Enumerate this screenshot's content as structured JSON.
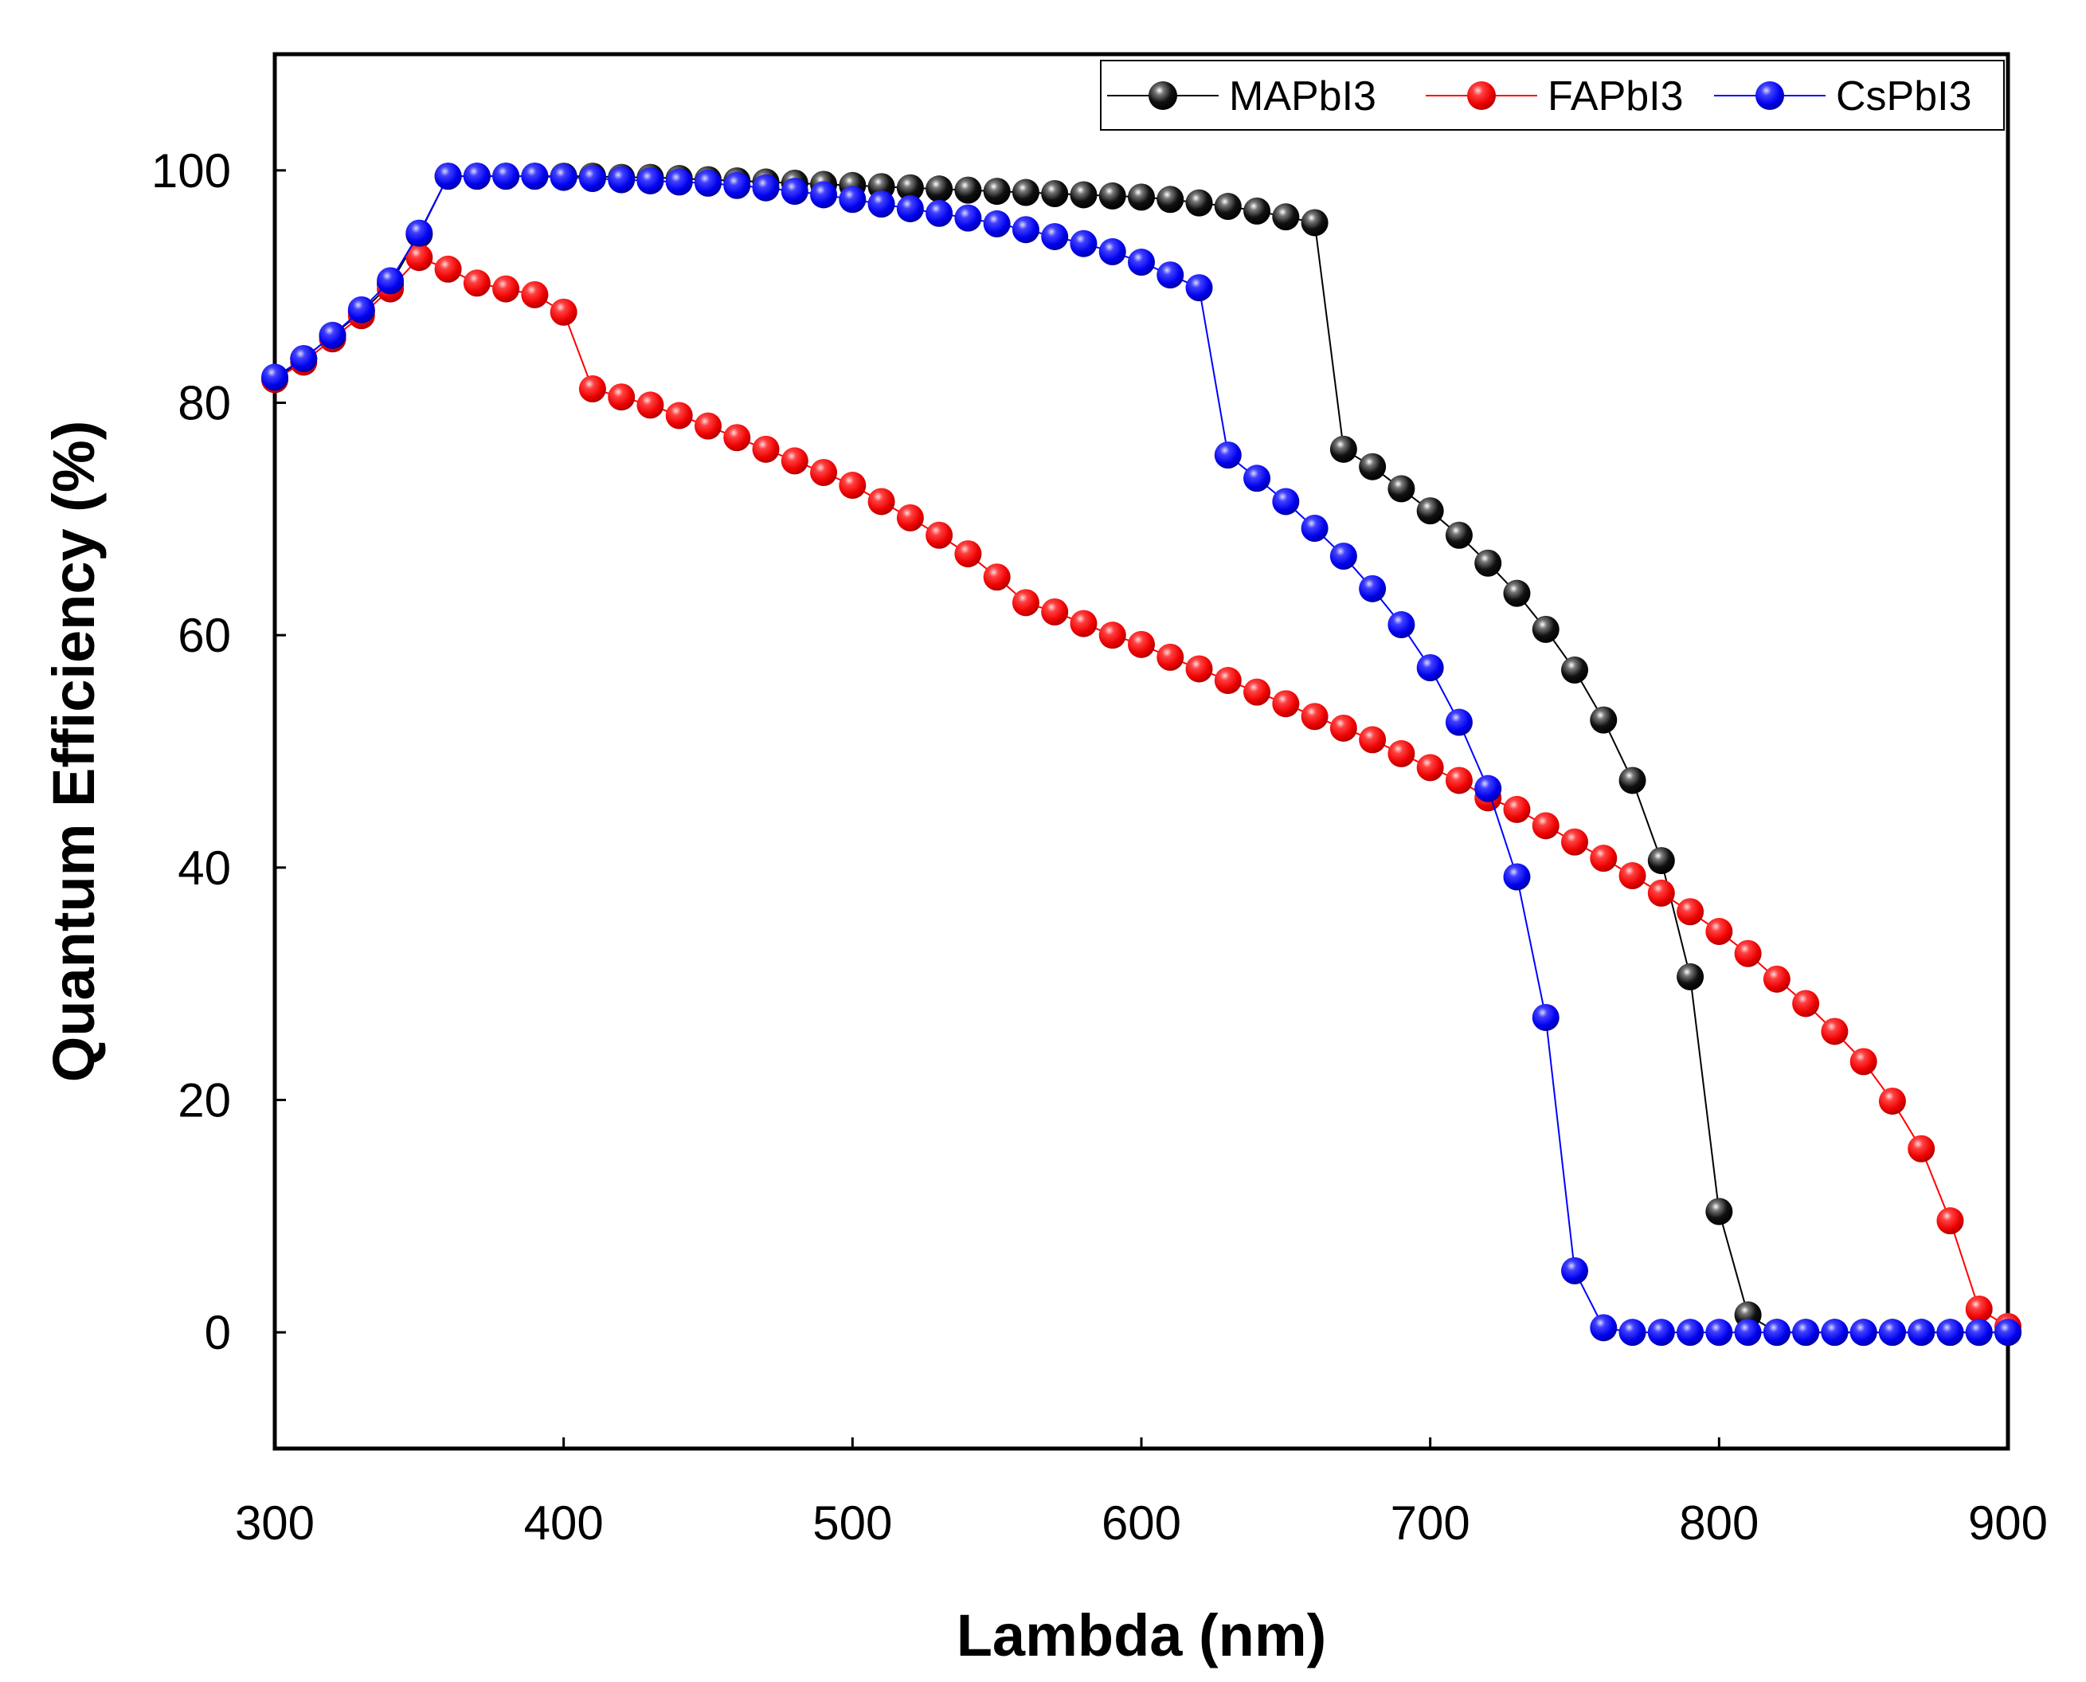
{
  "chart_data": {
    "type": "line",
    "title": "",
    "xlabel": "Lambda (nm)",
    "ylabel": "Quantum Efficiency (%)",
    "xlim": [
      300,
      900
    ],
    "ylim": [
      -10,
      110
    ],
    "xticks": [
      300,
      400,
      500,
      600,
      700,
      800,
      900
    ],
    "yticks": [
      0,
      20,
      40,
      60,
      80,
      100
    ],
    "xtick_labels": [
      "300",
      "400",
      "500",
      "600",
      "700",
      "800",
      "900"
    ],
    "ytick_labels": [
      "0",
      "20",
      "40",
      "60",
      "80",
      "100"
    ],
    "grid": false,
    "legend_position": "top-right",
    "x": [
      300,
      310,
      320,
      330,
      340,
      350,
      360,
      370,
      380,
      390,
      400,
      410,
      420,
      430,
      440,
      450,
      460,
      470,
      480,
      490,
      500,
      510,
      520,
      530,
      540,
      550,
      560,
      570,
      580,
      590,
      600,
      610,
      620,
      630,
      640,
      650,
      660,
      670,
      680,
      690,
      700,
      710,
      720,
      730,
      740,
      750,
      760,
      770,
      780,
      790,
      800,
      810,
      820,
      830,
      840,
      850,
      860,
      870,
      880,
      890,
      900
    ],
    "series": [
      {
        "name": "MAPbI3",
        "color": "#000000",
        "values": [
          82,
          83.8,
          85.8,
          87.8,
          90.2,
          94.5,
          99.5,
          99.5,
          99.5,
          99.5,
          99.5,
          99.5,
          99.4,
          99.4,
          99.3,
          99.2,
          99.1,
          99,
          98.9,
          98.8,
          98.7,
          98.6,
          98.5,
          98.4,
          98.3,
          98.2,
          98.1,
          98,
          97.9,
          97.8,
          97.7,
          97.5,
          97.2,
          96.9,
          96.5,
          96,
          95.5,
          76,
          74.5,
          72.6,
          70.7,
          68.6,
          66.2,
          63.6,
          60.5,
          57,
          52.7,
          47.5,
          40.6,
          30.6,
          10.4,
          1.5,
          0,
          0,
          0,
          0,
          0,
          0,
          0,
          0,
          0
        ]
      },
      {
        "name": "FAPbI3",
        "color": "#ff0000",
        "values": [
          82,
          83.5,
          85.5,
          87.5,
          89.8,
          92.5,
          91.5,
          90.3,
          89.8,
          89.3,
          87.8,
          81.2,
          80.5,
          79.8,
          78.9,
          78,
          77,
          76,
          75,
          74,
          72.9,
          71.5,
          70.1,
          68.6,
          67,
          65,
          62.8,
          62,
          61,
          60,
          59.2,
          58.1,
          57.1,
          56.1,
          55.1,
          54.1,
          53,
          52,
          51,
          49.8,
          48.6,
          47.5,
          46,
          45,
          43.6,
          42.2,
          40.8,
          39.3,
          37.8,
          36.2,
          34.5,
          32.6,
          30.4,
          28.3,
          25.9,
          23.3,
          19.9,
          15.8,
          9.6,
          2,
          0.5
        ]
      },
      {
        "name": "CsPbI3",
        "color": "#0000ff",
        "values": [
          82.2,
          83.8,
          85.8,
          88,
          90.5,
          94.6,
          99.5,
          99.5,
          99.5,
          99.5,
          99.4,
          99.3,
          99.2,
          99.1,
          99,
          98.9,
          98.7,
          98.5,
          98.2,
          97.9,
          97.5,
          97.1,
          96.7,
          96.3,
          95.9,
          95.4,
          94.9,
          94.3,
          93.7,
          93,
          92.1,
          91,
          89.9,
          75.5,
          73.5,
          71.5,
          69.2,
          66.8,
          64,
          60.9,
          57.2,
          52.5,
          46.8,
          39.2,
          27.1,
          5.3,
          0.4,
          0,
          0,
          0,
          0,
          0,
          0,
          0,
          0,
          0,
          0,
          0,
          0,
          0,
          0
        ]
      }
    ]
  }
}
